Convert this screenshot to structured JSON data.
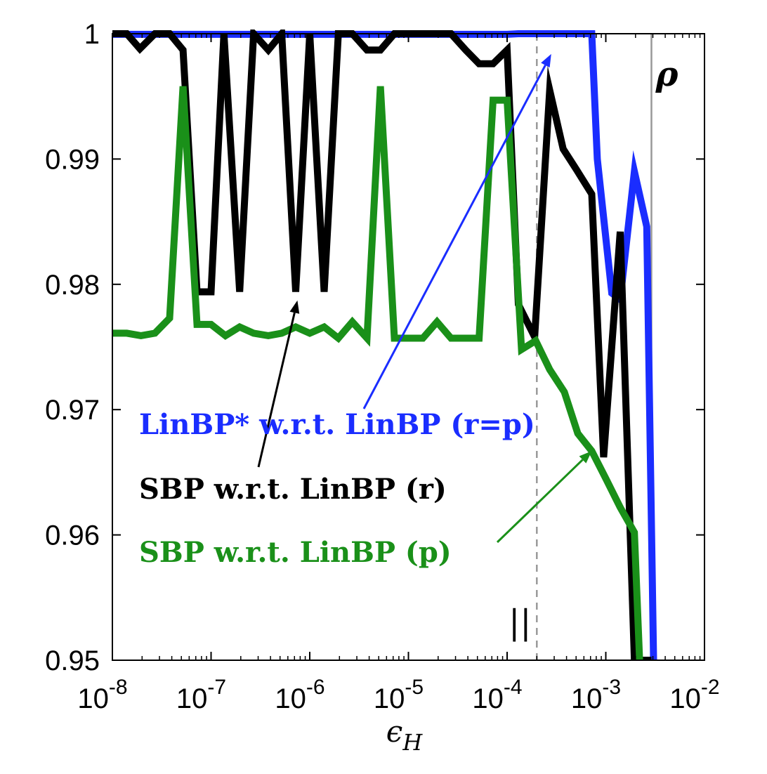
{
  "chart_data": {
    "type": "line",
    "xlabel": "ϵ",
    "xlabel_sub": "H",
    "xscale": "log",
    "xlim": [
      1e-08,
      0.01
    ],
    "ylim": [
      0.95,
      1.0
    ],
    "yticks": [
      0.95,
      0.96,
      0.97,
      0.98,
      0.99,
      1
    ],
    "ytick_labels": [
      "0.95",
      "0.96",
      "0.97",
      "0.98",
      "0.99",
      "1"
    ],
    "xticks": [
      {
        "value": 1e-08,
        "base": "10",
        "exp": "-8"
      },
      {
        "value": 1e-07,
        "base": "10",
        "exp": "-7"
      },
      {
        "value": 1e-06,
        "base": "10",
        "exp": "-6"
      },
      {
        "value": 1e-05,
        "base": "10",
        "exp": "-5"
      },
      {
        "value": 0.0001,
        "base": "10",
        "exp": "-4"
      },
      {
        "value": 0.001,
        "base": "10",
        "exp": "-3"
      },
      {
        "value": 0.01,
        "base": "10",
        "exp": "-2"
      }
    ],
    "grid": false,
    "reference_lines": [
      {
        "label": "||",
        "x": 0.0002,
        "style": "dashed",
        "color": "#999999"
      },
      {
        "label": "ρ",
        "x": 0.0029,
        "style": "solid",
        "color": "#999999"
      }
    ],
    "series": [
      {
        "name": "LinBP* w.r.t. LinBP (r=p)",
        "color": "#1a2dff",
        "x": [
          1e-08,
          2e-08,
          4e-08,
          1e-07,
          1e-06,
          1e-05,
          5e-05,
          0.0001,
          0.00013,
          0.0003,
          0.0005,
          0.00072,
          0.00082,
          0.00115,
          0.0014,
          0.00195,
          0.0026,
          0.00305
        ],
        "y": [
          0.99995,
          0.99995,
          0.99995,
          0.99995,
          0.99995,
          0.99995,
          0.99995,
          0.99995,
          1.0,
          1.0,
          1.0,
          1.0,
          0.99,
          0.9793,
          0.9788,
          0.989,
          0.9846,
          0.95
        ]
      },
      {
        "name": "SBP w.r.t. LinBP (r)",
        "color": "#000000",
        "x": [
          1e-08,
          1.4e-08,
          1.9e-08,
          2.7e-08,
          3.8e-08,
          5.2e-08,
          7.2e-08,
          1e-07,
          1.35e-07,
          1.95e-07,
          2.7e-07,
          3.8e-07,
          5.2e-07,
          7.2e-07,
          1e-06,
          1.4e-06,
          1.95e-06,
          2.7e-06,
          3.8e-06,
          5.2e-06,
          7.2e-06,
          1e-05,
          1.4e-05,
          1.95e-05,
          2.7e-05,
          3.8e-05,
          5.2e-05,
          7.2e-05,
          0.0001,
          0.00013,
          0.00019,
          0.00027,
          0.00037,
          0.0005,
          0.00072,
          0.00095,
          0.0014,
          0.00195,
          0.0022,
          0.0029
        ],
        "y": [
          1.0,
          1.0,
          0.9988,
          1.0,
          1.0,
          0.9987,
          0.9794,
          0.9794,
          1.0,
          0.9794,
          1.0,
          0.9987,
          1.0,
          0.9794,
          1.0,
          0.9794,
          1.0,
          1.0,
          0.9987,
          0.9987,
          1.0,
          1.0,
          1.0,
          1.0,
          1.0,
          0.9987,
          0.9976,
          0.9976,
          0.9987,
          0.9784,
          0.9758,
          0.9955,
          0.9908,
          0.9892,
          0.9872,
          0.9662,
          0.9842,
          0.95,
          0.95,
          0.95
        ]
      },
      {
        "name": "SBP w.r.t. LinBP (p)",
        "color": "#1a9019",
        "x": [
          1e-08,
          1.4e-08,
          1.95e-08,
          2.7e-08,
          3.8e-08,
          5.2e-08,
          7.2e-08,
          1e-07,
          1.4e-07,
          1.95e-07,
          2.7e-07,
          3.8e-07,
          5.2e-07,
          7.2e-07,
          1e-06,
          1.4e-06,
          1.95e-06,
          2.7e-06,
          3.8e-06,
          5.2e-06,
          7.2e-06,
          1e-05,
          1.4e-05,
          1.95e-05,
          2.7e-05,
          3.8e-05,
          5.2e-05,
          7.2e-05,
          0.0001,
          0.00014,
          0.000195,
          0.00027,
          0.00038,
          0.00052,
          0.00072,
          0.001,
          0.0014,
          0.00195,
          0.0022
        ],
        "y": [
          0.9761,
          0.9761,
          0.9759,
          0.9761,
          0.9773,
          0.9958,
          0.9768,
          0.9768,
          0.9759,
          0.9766,
          0.9761,
          0.9759,
          0.9761,
          0.9766,
          0.9761,
          0.9766,
          0.9757,
          0.977,
          0.9757,
          0.9958,
          0.9757,
          0.9757,
          0.9757,
          0.977,
          0.9757,
          0.9757,
          0.9757,
          0.9947,
          0.9947,
          0.9748,
          0.9755,
          0.9732,
          0.9714,
          0.9681,
          0.9667,
          0.9645,
          0.9622,
          0.9602,
          0.95
        ]
      }
    ],
    "annotations": [
      {
        "text": "LinBP* w.r.t. LinBP (r=p)",
        "color": "#1a2dff",
        "arrow_to": {
          "x": 0.00028,
          "y": 0.99995
        }
      },
      {
        "text": "SBP w.r.t. LinBP (r)",
        "color": "#000000",
        "arrow_to": {
          "x": 7.5e-07,
          "y": 0.9795
        }
      },
      {
        "text": "SBP w.r.t. LinBP (p)",
        "color": "#1a9019",
        "arrow_to": {
          "x": 0.00072,
          "y": 0.9667
        }
      }
    ]
  }
}
